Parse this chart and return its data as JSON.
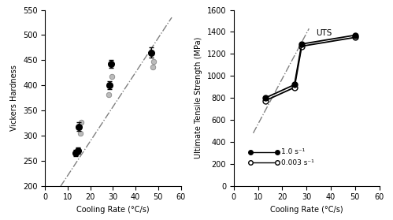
{
  "left_chart": {
    "xlabel": "Cooling Rate (°C/s)",
    "ylabel": "Vickers Hardness",
    "xlim": [
      0,
      60
    ],
    "ylim": [
      200,
      550
    ],
    "yticks": [
      200,
      250,
      300,
      350,
      400,
      450,
      500,
      550
    ],
    "xticks": [
      0,
      10,
      20,
      30,
      40,
      50,
      60
    ],
    "dark_points": [
      [
        13.5,
        265
      ],
      [
        14.5,
        270
      ],
      [
        15.0,
        318
      ],
      [
        28.5,
        400
      ],
      [
        29.0,
        443
      ],
      [
        47.0,
        465
      ]
    ],
    "dark_yerr": [
      6,
      6,
      8,
      8,
      8,
      10
    ],
    "light_points": [
      [
        15.5,
        305
      ],
      [
        16.0,
        327
      ],
      [
        28.0,
        382
      ],
      [
        29.5,
        418
      ],
      [
        47.5,
        437
      ],
      [
        48.0,
        448
      ]
    ],
    "trendline_x": [
      4,
      56
    ],
    "trendline_y": [
      180,
      535
    ]
  },
  "right_chart": {
    "xlabel": "Cooling Rate (°C/s)",
    "ylabel": "Ultimate Tensile Strength (MPa)",
    "xlim": [
      0,
      60
    ],
    "ylim": [
      0,
      1600
    ],
    "yticks": [
      0,
      200,
      400,
      600,
      800,
      1000,
      1200,
      1400,
      1600
    ],
    "xticks": [
      0,
      10,
      20,
      30,
      40,
      50,
      60
    ],
    "series1_x": [
      13,
      25,
      28,
      50
    ],
    "series1_y": [
      800,
      920,
      1290,
      1370
    ],
    "series2_x": [
      13,
      25,
      28,
      50
    ],
    "series2_y": [
      775,
      895,
      1270,
      1350
    ],
    "trendline_x": [
      8,
      31
    ],
    "trendline_y": [
      480,
      1430
    ],
    "legend1": "1.0 s⁻¹",
    "legend2": "0.003 s⁻¹",
    "uts_x": 34,
    "uts_y": 1390
  }
}
